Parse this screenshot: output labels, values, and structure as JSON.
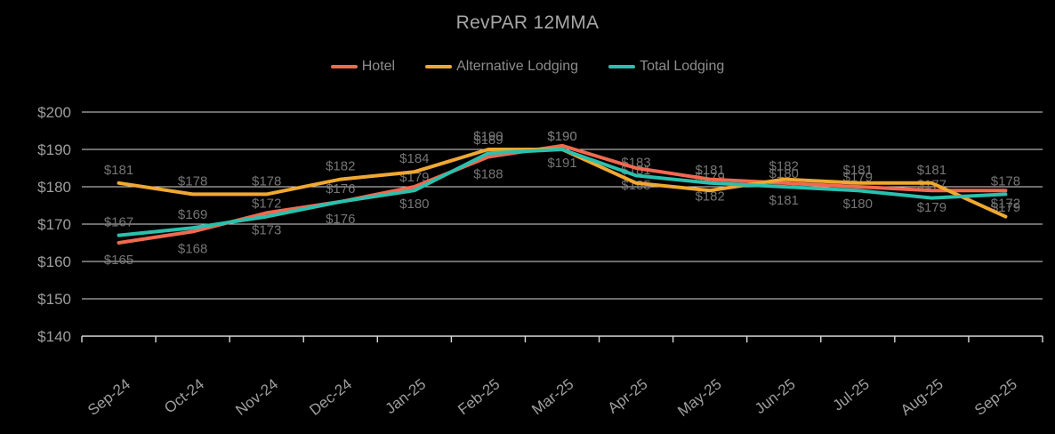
{
  "chart_data": {
    "type": "line",
    "title": "RevPAR 12MMA",
    "legend_position": "top",
    "grid": true,
    "background": "#000000",
    "ylim": [
      140,
      200
    ],
    "ytick_step": 10,
    "ytick_labels": [
      "$200",
      "$190",
      "$180",
      "$170",
      "$160",
      "$150",
      "$140"
    ],
    "categories": [
      "Sep-24",
      "Oct-24",
      "Nov-24",
      "Dec-24",
      "Jan-25",
      "Feb-25",
      "Mar-25",
      "Apr-25",
      "May-25",
      "Jun-25",
      "Jul-25",
      "Aug-25",
      "Sep-25"
    ],
    "series": [
      {
        "name": "Hotel",
        "color": "#f2694f",
        "label_side": "below",
        "values": [
          165,
          168,
          173,
          176,
          180,
          188,
          191,
          185,
          182,
          181,
          180,
          179,
          179
        ]
      },
      {
        "name": "Alternative Lodging",
        "color": "#efa832",
        "label_side": "above",
        "values": [
          181,
          178,
          178,
          182,
          184,
          190,
          190,
          181,
          179,
          182,
          181,
          181,
          172
        ]
      },
      {
        "name": "Total Lodging",
        "color": "#2bc0ae",
        "label_side": "above",
        "values": [
          167,
          169,
          172,
          176,
          179,
          189,
          190,
          183,
          181,
          180,
          179,
          177,
          178
        ]
      }
    ],
    "value_prefix": "$"
  }
}
